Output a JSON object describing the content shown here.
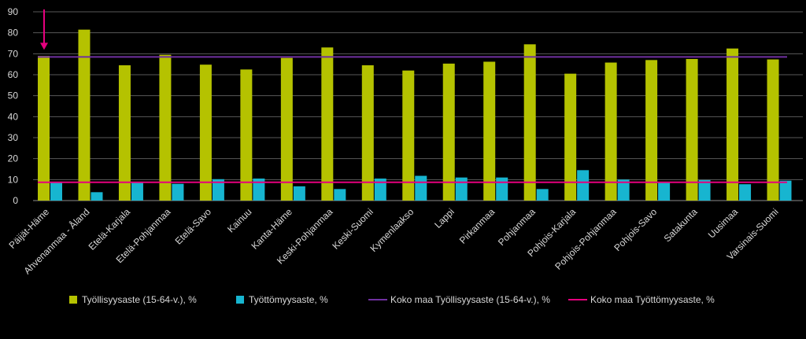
{
  "chart_data": {
    "type": "bar",
    "categories": [
      "Päijät-Häme",
      "Ahvenanmaa - Åland",
      "Etelä-Karjala",
      "Etelä-Pohjanmaa",
      "Etelä-Savo",
      "Kainuu",
      "Kanta-Häme",
      "Keski-Pohjanmaa",
      "Keski-Suomi",
      "Kymenlaakso",
      "Lappi",
      "Pirkanmaa",
      "Pohjanmaa",
      "Pohjois-Karjala",
      "Pohjois-Pohjanmaa",
      "Pohjois-Savo",
      "Satakunta",
      "Uusimaa",
      "Varsinais-Suomi"
    ],
    "series": [
      {
        "name": "Työllisyysaste (15-64-v.), %",
        "color": "#b5c200",
        "values": [
          69,
          81.5,
          64.5,
          69.5,
          64.8,
          62.5,
          68,
          73,
          64.5,
          62,
          65.3,
          66.2,
          74.5,
          60.5,
          65.8,
          67,
          67.5,
          72.5,
          67.3
        ]
      },
      {
        "name": "Työttömyysaste, %",
        "color": "#17b5d0",
        "values": [
          8.5,
          4,
          8.5,
          8,
          10.2,
          10.5,
          6.8,
          5.5,
          10.5,
          11.8,
          11,
          11,
          5.5,
          14.5,
          10,
          8.8,
          9.8,
          7.8,
          9.5
        ]
      }
    ],
    "reference_lines": [
      {
        "name": "Koko maa Työllisyysaste (15-64-v.), %",
        "color": "#7030a0",
        "value": 68.5
      },
      {
        "name": "Koko maa Työttömyysaste, %",
        "color": "#e6007e",
        "value": 8.7
      }
    ],
    "yticks": [
      "0",
      "10",
      "20",
      "30",
      "40",
      "50",
      "60",
      "70",
      "80",
      "90"
    ],
    "ylim": [
      0,
      90
    ],
    "grid": true,
    "legend": "bottom",
    "annotation": {
      "type": "arrow",
      "color": "#e6007e",
      "category": "Päijät-Häme",
      "from": 90,
      "to": 70
    },
    "title": "",
    "xlabel": "",
    "ylabel": ""
  }
}
